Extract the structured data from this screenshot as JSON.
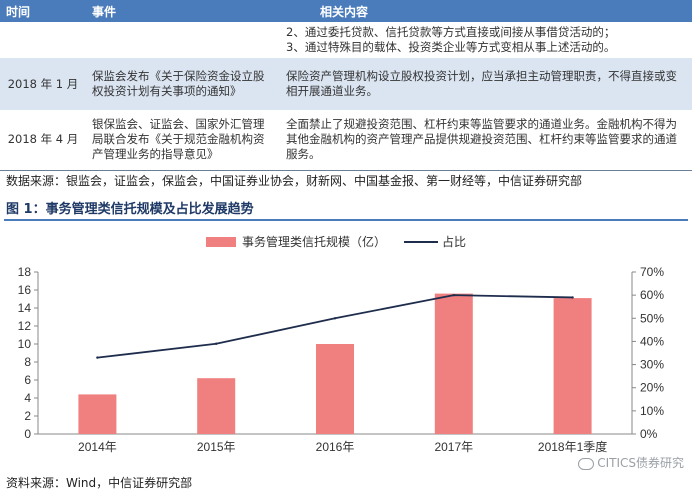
{
  "table": {
    "headers": [
      "时间",
      "事件",
      "相关内容"
    ],
    "rows": [
      {
        "time": "",
        "event": "",
        "content": "2、通过委托贷款、信托贷款等方式直接或间接从事借贷活动的；\n3、通过特殊目的载体、投资类企业等方式变相从事上述活动的。"
      },
      {
        "time": "2018 年 1 月",
        "event": "保监会发布《关于保险资金设立股权投资计划有关事项的通知》",
        "content": "保险资产管理机构设立股权投资计划，应当承担主动管理职责，不得直接或变相开展通道业务。"
      },
      {
        "time": "2018 年 4 月",
        "event": "银保监会、证监会、国家外汇管理局联合发布《关于规范金融机构资产管理业务的指导意见》",
        "content": "全面禁止了规避投资范围、杠杆约束等监管要求的通道业务。金融机构不得为其他金融机构的资产管理产品提供规避投资范围、杠杆约束等监管要求的通道服务。"
      }
    ]
  },
  "source_top": "数据来源：银监会，证监会，保监会，中国证券业协会，财新网、中国基金报、第一财经等，中信证券研究部",
  "figure_title": "图 1：事务管理类信托规模及占比发展趋势",
  "source_bottom": "资料来源：Wind，中信证券研究部",
  "watermark": "CITICS债券研究",
  "chart_data": {
    "type": "bar",
    "categories": [
      "2014年",
      "2015年",
      "2016年",
      "2017年",
      "2018年1季度"
    ],
    "series": [
      {
        "name": "事务管理类信托规模（亿）",
        "type": "bar",
        "axis": "left",
        "values": [
          4.4,
          6.2,
          10.0,
          15.6,
          15.1
        ],
        "color": "#f08080"
      },
      {
        "name": "占比",
        "type": "line",
        "axis": "right",
        "values": [
          0.33,
          0.39,
          0.5,
          0.6,
          0.59
        ],
        "color": "#1f2d4d"
      }
    ],
    "y_left": {
      "min": 0,
      "max": 18,
      "ticks": [
        "0",
        "2",
        "4",
        "6",
        "8",
        "10",
        "12",
        "14",
        "16",
        "18"
      ]
    },
    "y_right": {
      "min": 0,
      "max": 0.7,
      "ticks": [
        "0%",
        "10%",
        "20%",
        "30%",
        "40%",
        "50%",
        "60%",
        "70%"
      ]
    },
    "legend_position": "top-center",
    "grid": false
  }
}
